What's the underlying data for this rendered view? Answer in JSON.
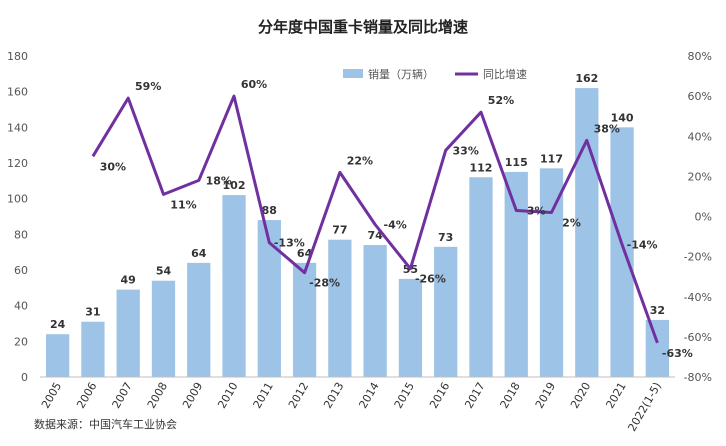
{
  "chart_data": {
    "type": "bar+line",
    "title": "分年度中国重卡销量及同比增速",
    "categories": [
      "2005",
      "2006",
      "2007",
      "2008",
      "2009",
      "2010",
      "2011",
      "2012",
      "2013",
      "2014",
      "2015",
      "2016",
      "2017",
      "2018",
      "2019",
      "2020",
      "2021",
      "2022(1-5)"
    ],
    "series": [
      {
        "name": "销量（万辆）",
        "type": "bar",
        "axis": "left",
        "color": "#9dc3e6",
        "values": [
          24,
          31,
          49,
          54,
          64,
          102,
          88,
          64,
          77,
          74,
          55,
          73,
          112,
          115,
          117,
          162,
          140,
          32
        ],
        "labels": [
          "24",
          "31",
          "49",
          "54",
          "64",
          "102",
          "88",
          "64",
          "77",
          "74",
          "55",
          "73",
          "112",
          "115",
          "117",
          "162",
          "140",
          "32"
        ]
      },
      {
        "name": "同比增速",
        "type": "line",
        "axis": "right",
        "color": "#7030a0",
        "values": [
          null,
          30,
          59,
          11,
          18,
          60,
          -13,
          -28,
          22,
          -4,
          -26,
          33,
          52,
          3,
          2,
          38,
          -14,
          -63
        ],
        "labels": [
          "",
          "30%",
          "59%",
          "11%",
          "18%",
          "60%",
          "-13%",
          "-28%",
          "22%",
          "-4%",
          "-26%",
          "33%",
          "52%",
          "3%",
          "2%",
          "38%",
          "-14%",
          "-63%"
        ]
      }
    ],
    "ylim_left": [
      0,
      180
    ],
    "yticks_left": [
      "0",
      "20",
      "40",
      "60",
      "80",
      "100",
      "120",
      "140",
      "160",
      "180"
    ],
    "ylim_right": [
      -80,
      80
    ],
    "yticks_right": [
      "-80%",
      "-60%",
      "-40%",
      "-20%",
      "0%",
      "20%",
      "40%",
      "60%",
      "80%"
    ],
    "grid": false,
    "legend_position": "top-right",
    "source": "数据来源：中国汽车工业协会"
  }
}
